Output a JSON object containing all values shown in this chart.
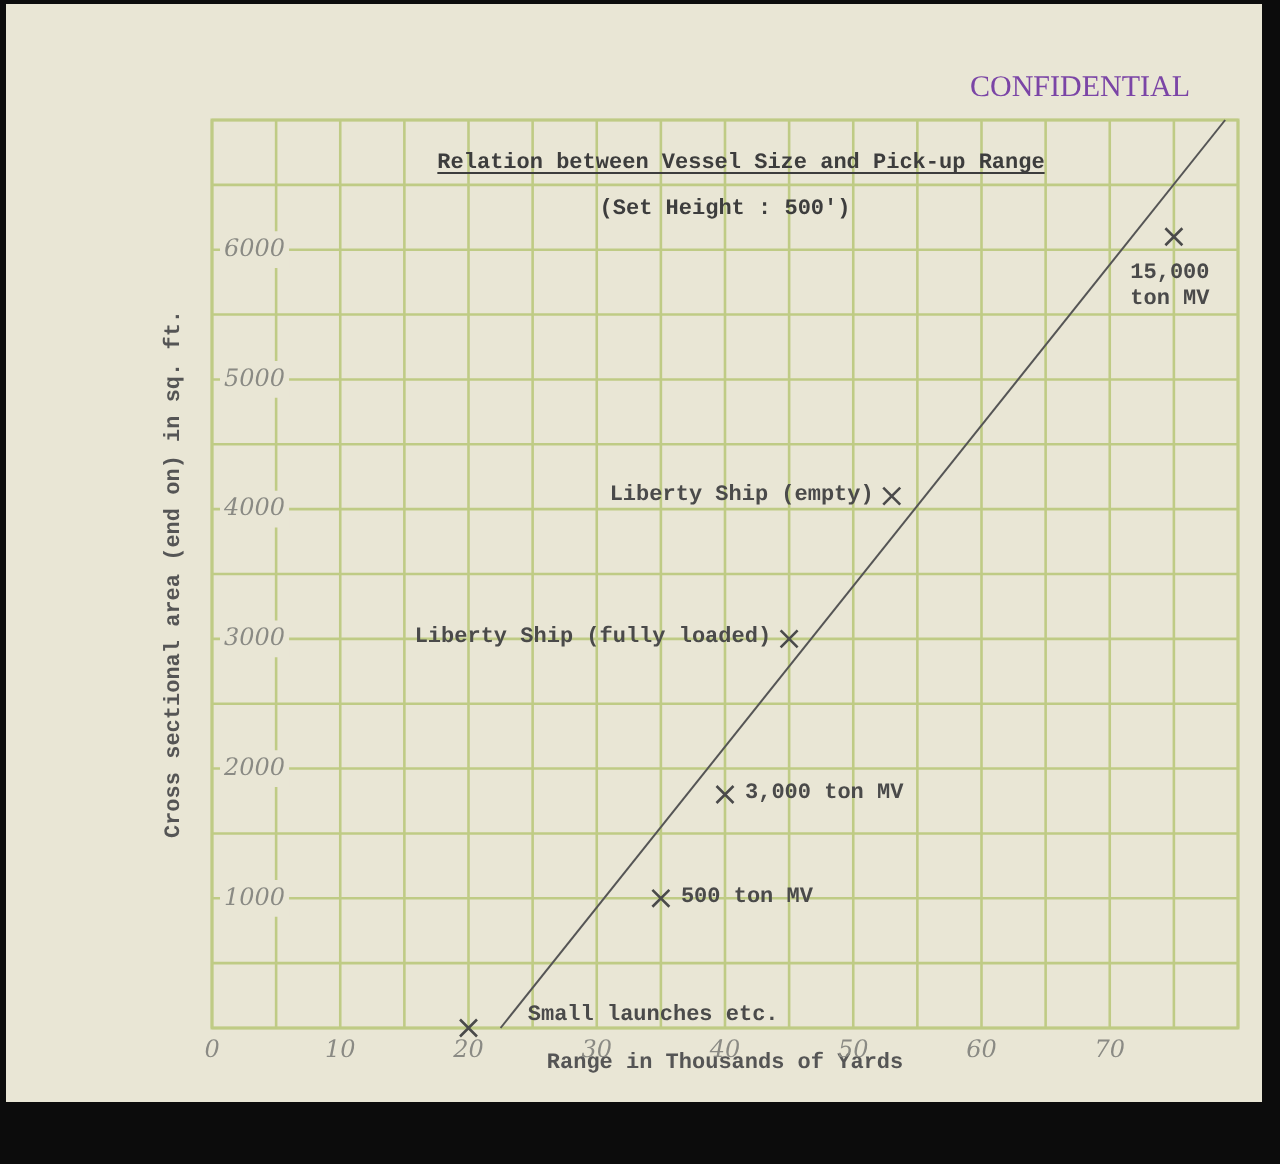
{
  "chart_data": {
    "type": "scatter",
    "title": "Relation between Vessel Size and Pick-up Range",
    "subtitle": "(Set Height : 500')",
    "xlabel": "Range in Thousands of Yards",
    "ylabel": "Cross sectional area (end on) in sq. ft.",
    "series": [
      {
        "color": "#4a4a4a",
        "x": [
          20,
          35,
          40,
          45,
          53,
          75
        ],
        "values": [
          0,
          1000,
          1800,
          3000,
          4100,
          6100
        ]
      },
      {
        "type": "line",
        "color": "#555555",
        "marker": "none",
        "x": [
          22.5,
          79
        ],
        "values": [
          0,
          7000
        ]
      }
    ],
    "marker": "cross",
    "xlim": [
      0,
      80
    ],
    "xticks": [
      0,
      10,
      20,
      30,
      40,
      50,
      60,
      70
    ],
    "ylim": [
      0,
      7000
    ],
    "yticks": [
      1000,
      2000,
      3000,
      4000,
      5000,
      6000
    ],
    "grid": true,
    "annotations": [
      "CONFIDENTIAL",
      {
        "text": "Small launches etc.",
        "x": 20,
        "y": 0
      },
      {
        "text": "500 ton MV",
        "x": 35,
        "y": 1000
      },
      {
        "text": "3,000 ton MV",
        "x": 40,
        "y": 1800
      },
      {
        "text": "Liberty Ship (fully loaded)",
        "x": 45,
        "y": 3000
      },
      {
        "text": "Liberty Ship (empty)",
        "x": 53,
        "y": 4100
      },
      {
        "text": "15,000 ton MV",
        "x": 75,
        "y": 6100
      }
    ]
  }
}
